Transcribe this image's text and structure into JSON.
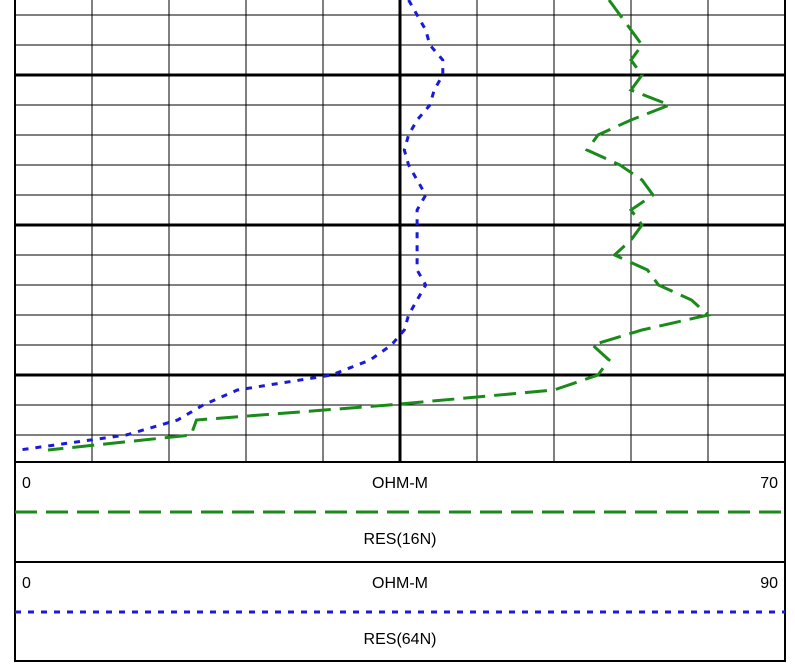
{
  "chart_data": {
    "type": "well-log",
    "series": [
      {
        "name": "RES(16N)",
        "unit": "OHM-M",
        "color": "#1a8a1a",
        "xlim": [
          0,
          70
        ],
        "xticks": [
          0,
          7,
          14,
          21,
          28,
          35,
          42,
          49,
          56,
          63,
          70
        ],
        "values": [
          54,
          55,
          56,
          57,
          56,
          57,
          56,
          59.5,
          56,
          53,
          52,
          55,
          57,
          58,
          56,
          57,
          56,
          54.5,
          57.5,
          58.5,
          61.5,
          63,
          57,
          52.5,
          54,
          53,
          49,
          34,
          16.5,
          16,
          3
        ]
      },
      {
        "name": "RES(64N)",
        "unit": "OHM-M",
        "color": "#1a1ad8",
        "xlim": [
          0,
          90
        ],
        "values": [
          46,
          47,
          48,
          48.5,
          50,
          50,
          49,
          48.5,
          47,
          46,
          45.5,
          46,
          47,
          48,
          47,
          47,
          47,
          47,
          47,
          48,
          47,
          46,
          45.5,
          44,
          41.5,
          37,
          26,
          22,
          19,
          13,
          0.5
        ]
      }
    ]
  }
}
